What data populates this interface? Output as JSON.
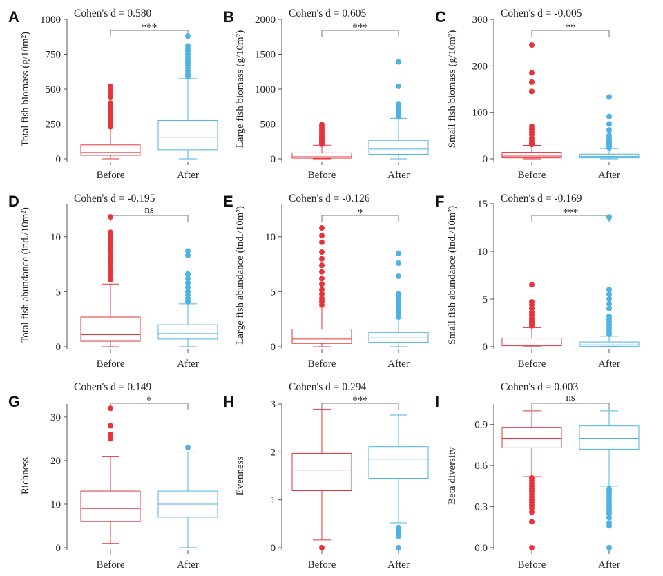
{
  "figure": {
    "groups": [
      "Before",
      "After"
    ],
    "colors": {
      "before": "#e8333a",
      "after": "#4db3e3"
    }
  },
  "chart_data": [
    {
      "panel": "A",
      "type": "box",
      "title": "Cohen's d = 0.580",
      "ylabel": "Total fish biomass (g/10m²)",
      "ylim": [
        0,
        1000
      ],
      "yticks": [
        0,
        250,
        500,
        750,
        1000
      ],
      "significance": "***",
      "series": [
        {
          "name": "Before",
          "whisker_low": 0,
          "q1": 25,
          "median": 45,
          "q3": 100,
          "whisker_high": 220,
          "outliers": [
            230,
            240,
            255,
            270,
            285,
            300,
            315,
            330,
            350,
            370,
            400,
            440,
            470,
            500,
            520
          ]
        },
        {
          "name": "After",
          "whisker_low": 0,
          "q1": 65,
          "median": 155,
          "q3": 275,
          "whisker_high": 575,
          "outliers": [
            590,
            610,
            630,
            650,
            670,
            690,
            710,
            730,
            750,
            770,
            790,
            810,
            880
          ]
        }
      ]
    },
    {
      "panel": "B",
      "type": "box",
      "title": "Cohen's d = 0.605",
      "ylabel": "Large fish biomass (g/10m²)",
      "ylim": [
        0,
        2000
      ],
      "yticks": [
        0,
        500,
        1000,
        1500,
        2000
      ],
      "significance": "***",
      "series": [
        {
          "name": "Before",
          "whisker_low": 0,
          "q1": 10,
          "median": 30,
          "q3": 85,
          "whisker_high": 195,
          "outliers": [
            210,
            230,
            250,
            270,
            290,
            310,
            330,
            360,
            390,
            420,
            460,
            490
          ]
        },
        {
          "name": "After",
          "whisker_low": 0,
          "q1": 65,
          "median": 140,
          "q3": 265,
          "whisker_high": 580,
          "outliers": [
            600,
            630,
            660,
            690,
            720,
            750,
            790,
            1040,
            1390
          ]
        }
      ]
    },
    {
      "panel": "C",
      "type": "box",
      "title": "Cohen's d = -0.005",
      "ylabel": "Small fish biomass (g/10m²)",
      "ylim": [
        0,
        300
      ],
      "yticks": [
        0,
        100,
        200,
        300
      ],
      "significance": "**",
      "series": [
        {
          "name": "Before",
          "whisker_low": 0,
          "q1": 2,
          "median": 6,
          "q3": 14,
          "whisker_high": 29,
          "outliers": [
            31,
            34,
            37,
            41,
            45,
            52,
            58,
            64,
            70,
            145,
            165,
            185,
            245
          ]
        },
        {
          "name": "After",
          "whisker_low": 0,
          "q1": 2,
          "median": 5,
          "q3": 10,
          "whisker_high": 22,
          "outliers": [
            24,
            27,
            30,
            34,
            38,
            43,
            50,
            62,
            75,
            91,
            133
          ]
        }
      ]
    },
    {
      "panel": "D",
      "type": "box",
      "title": "Cohen's d = -0.195",
      "ylabel": "Total fish abundance (ind./10m²)",
      "ylim": [
        0,
        13
      ],
      "yticks": [
        0,
        5,
        10
      ],
      "significance": "ns",
      "series": [
        {
          "name": "Before",
          "whisker_low": 0,
          "q1": 0.5,
          "median": 1.1,
          "q3": 2.7,
          "whisker_high": 5.7,
          "outliers": [
            6.1,
            6.5,
            6.9,
            7.3,
            7.7,
            8.1,
            8.5,
            8.9,
            9.3,
            9.7,
            10.1,
            10.4,
            11.8
          ]
        },
        {
          "name": "After",
          "whisker_low": 0,
          "q1": 0.7,
          "median": 1.2,
          "q3": 2.0,
          "whisker_high": 3.9,
          "outliers": [
            4.1,
            4.4,
            4.7,
            5.0,
            5.4,
            5.8,
            6.2,
            6.6,
            8.3,
            8.7
          ]
        }
      ]
    },
    {
      "panel": "E",
      "type": "box",
      "title": "Cohen's d = -0.126",
      "ylabel": "Large fish abundance (ind./10m²)",
      "ylim": [
        0,
        13
      ],
      "yticks": [
        0,
        5,
        10
      ],
      "significance": "*",
      "series": [
        {
          "name": "Before",
          "whisker_low": 0,
          "q1": 0.3,
          "median": 0.7,
          "q3": 1.6,
          "whisker_high": 3.6,
          "outliers": [
            3.8,
            4.1,
            4.4,
            4.8,
            5.2,
            5.7,
            6.2,
            6.8,
            7.4,
            8.0,
            8.6,
            9.5,
            10.1,
            10.8
          ]
        },
        {
          "name": "After",
          "whisker_low": 0,
          "q1": 0.4,
          "median": 0.8,
          "q3": 1.3,
          "whisker_high": 2.6,
          "outliers": [
            2.7,
            2.9,
            3.1,
            3.3,
            3.5,
            3.7,
            3.9,
            4.1,
            4.4,
            4.8,
            6.4,
            7.6,
            8.5
          ]
        }
      ]
    },
    {
      "panel": "F",
      "type": "box",
      "title": "Cohen's d = -0.169",
      "ylabel": "Small fish abundance (ind./10m²)",
      "ylim": [
        0,
        15
      ],
      "yticks": [
        0,
        5,
        10,
        15
      ],
      "significance": "***",
      "series": [
        {
          "name": "Before",
          "whisker_low": 0,
          "q1": 0.1,
          "median": 0.4,
          "q3": 0.9,
          "whisker_high": 2.0,
          "outliers": [
            2.2,
            2.4,
            2.6,
            2.8,
            3.0,
            3.3,
            3.6,
            4.0,
            4.4,
            4.7,
            6.5
          ]
        },
        {
          "name": "After",
          "whisker_low": 0,
          "q1": 0.05,
          "median": 0.2,
          "q3": 0.5,
          "whisker_high": 1.1,
          "outliers": [
            1.3,
            1.5,
            1.8,
            2.0,
            2.3,
            2.6,
            2.9,
            3.2,
            4.0,
            4.5,
            5.0,
            5.5,
            6.0,
            13.6
          ]
        }
      ]
    },
    {
      "panel": "G",
      "type": "box",
      "title": "Cohen's d = 0.149",
      "ylabel": "Richness",
      "ylim": [
        0,
        33
      ],
      "yticks": [
        0,
        10,
        20,
        30
      ],
      "significance": "*",
      "series": [
        {
          "name": "Before",
          "whisker_low": 1,
          "q1": 6,
          "median": 9,
          "q3": 13,
          "whisker_high": 21,
          "outliers": [
            25,
            26,
            28,
            32
          ]
        },
        {
          "name": "After",
          "whisker_low": 0,
          "q1": 7,
          "median": 10,
          "q3": 13,
          "whisker_high": 22,
          "outliers": [
            23
          ]
        }
      ]
    },
    {
      "panel": "H",
      "type": "box",
      "title": "Cohen's d = 0.294",
      "ylabel": "Evenness",
      "ylim": [
        0,
        3
      ],
      "yticks": [
        0,
        1,
        2,
        3
      ],
      "significance": "***",
      "series": [
        {
          "name": "Before",
          "whisker_low": 0.16,
          "q1": 1.19,
          "median": 1.62,
          "q3": 1.97,
          "whisker_high": 2.89,
          "outliers": [
            0.0
          ]
        },
        {
          "name": "After",
          "whisker_low": 0.52,
          "q1": 1.45,
          "median": 1.85,
          "q3": 2.11,
          "whisker_high": 2.77,
          "outliers": [
            0.0,
            0.24,
            0.3,
            0.36,
            0.42
          ]
        }
      ]
    },
    {
      "panel": "I",
      "type": "box",
      "title": "Cohen's d = 0.003",
      "ylabel": "Beta diversity",
      "ylim": [
        0,
        1.05
      ],
      "yticks": [
        0.0,
        0.3,
        0.6,
        0.9
      ],
      "ytick_labels": [
        "0.0",
        "0.3",
        "0.6",
        "0.9"
      ],
      "significance": "ns",
      "series": [
        {
          "name": "Before",
          "whisker_low": 0.52,
          "q1": 0.73,
          "median": 0.8,
          "q3": 0.88,
          "whisker_high": 1.0,
          "outliers": [
            0.0,
            0.19,
            0.26,
            0.29,
            0.31,
            0.33,
            0.35,
            0.37,
            0.39,
            0.41,
            0.43,
            0.45,
            0.47,
            0.49,
            0.51
          ]
        },
        {
          "name": "After",
          "whisker_low": 0.45,
          "q1": 0.72,
          "median": 0.8,
          "q3": 0.89,
          "whisker_high": 1.0,
          "outliers": [
            0.0,
            0.16,
            0.18,
            0.22,
            0.25,
            0.27,
            0.29,
            0.31,
            0.33,
            0.35,
            0.37,
            0.39,
            0.41,
            0.43
          ]
        }
      ]
    }
  ]
}
